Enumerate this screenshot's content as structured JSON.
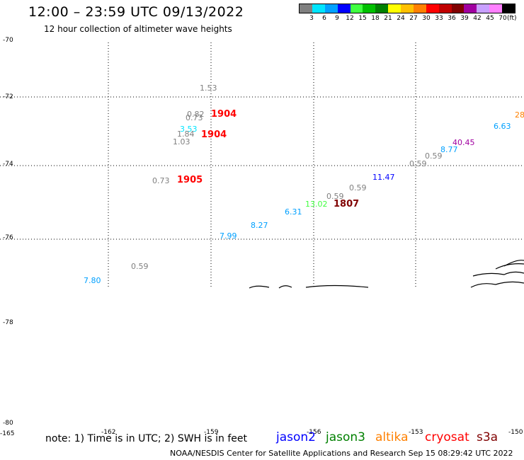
{
  "title": "12:00 – 23:59 UTC 09/13/2022",
  "subtitle": "12 hour collection of altimeter wave heights",
  "scale": {
    "colors": [
      "#808080",
      "#00e5ff",
      "#00a0ff",
      "#0000ff",
      "#40ff40",
      "#00c000",
      "#008000",
      "#ffff00",
      "#ffc000",
      "#ff8000",
      "#ff0000",
      "#c00000",
      "#800000",
      "#a000a0",
      "#c8a0ff",
      "#ff80ff",
      "#000000"
    ],
    "labels": [
      "3",
      "6",
      "9",
      "12",
      "15",
      "18",
      "21",
      "24",
      "27",
      "30",
      "33",
      "36",
      "39",
      "42",
      "45",
      "70"
    ],
    "units": "(ft)"
  },
  "y_ticks": [
    "-70",
    "-72",
    "-74",
    "-76",
    "-78",
    "-80"
  ],
  "x_ticks": [
    "-165",
    "-162",
    "-159",
    "-156",
    "-153",
    "-150"
  ],
  "observations": [
    {
      "text": "1.53",
      "color": "#808080",
      "big": false
    },
    {
      "text": "0.82",
      "color": "#808080",
      "big": false
    },
    {
      "text": "0.73",
      "color": "#808080",
      "big": false
    },
    {
      "text": "1904",
      "color": "#ff0000",
      "big": true
    },
    {
      "text": "3.53",
      "color": "#00e5ff",
      "big": false
    },
    {
      "text": "1.84",
      "color": "#808080",
      "big": false
    },
    {
      "text": "1904",
      "color": "#ff0000",
      "big": true
    },
    {
      "text": "1.03",
      "color": "#808080",
      "big": false
    },
    {
      "text": "0.73",
      "color": "#808080",
      "big": false
    },
    {
      "text": "1905",
      "color": "#ff0000",
      "big": true
    },
    {
      "text": "0.59",
      "color": "#808080",
      "big": false
    },
    {
      "text": "7.80",
      "color": "#00a0ff",
      "big": false
    },
    {
      "text": "7.99",
      "color": "#00a0ff",
      "big": false
    },
    {
      "text": "8.27",
      "color": "#00a0ff",
      "big": false
    },
    {
      "text": "6.31",
      "color": "#00a0ff",
      "big": false
    },
    {
      "text": "13.02",
      "color": "#40ff40",
      "big": false
    },
    {
      "text": "0.59",
      "color": "#808080",
      "big": false
    },
    {
      "text": "1807",
      "color": "#800000",
      "big": true
    },
    {
      "text": "0.59",
      "color": "#808080",
      "big": false
    },
    {
      "text": "11.47",
      "color": "#0000ff",
      "big": false
    },
    {
      "text": "0.59",
      "color": "#808080",
      "big": false
    },
    {
      "text": "0.59",
      "color": "#808080",
      "big": false
    },
    {
      "text": "8.77",
      "color": "#00a0ff",
      "big": false
    },
    {
      "text": "40.45",
      "color": "#a000a0",
      "big": false
    },
    {
      "text": "6.63",
      "color": "#00a0ff",
      "big": false
    },
    {
      "text": "28",
      "color": "#ff8000",
      "big": false
    }
  ],
  "note": "note:  1) Time is in UTC;  2) SWH is in feet",
  "legend": [
    {
      "name": "jason2",
      "color": "#0000ff"
    },
    {
      "name": "jason3",
      "color": "#008000"
    },
    {
      "name": "altika",
      "color": "#ff8000"
    },
    {
      "name": "cryosat",
      "color": "#ff0000"
    },
    {
      "name": "s3a",
      "color": "#800000"
    }
  ],
  "footer": "NOAA/NESDIS Center for Satellite Applications and Research    Sep 15 08:29:42 UTC 2022"
}
